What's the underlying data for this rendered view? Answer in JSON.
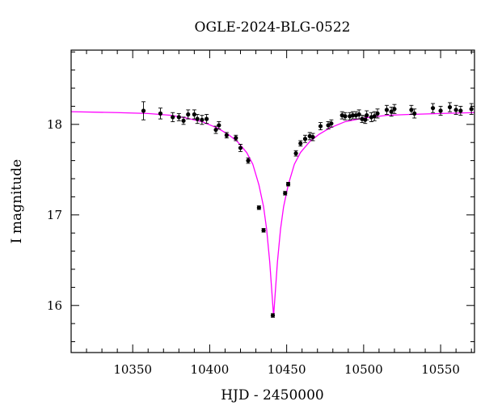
{
  "chart_data": {
    "type": "scatter",
    "title": "OGLE-2024-BLG-0522",
    "xlabel": "HJD - 2450000",
    "ylabel": "I magnitude",
    "xlim": [
      10310,
      10572
    ],
    "ylim": [
      18.82,
      15.48
    ],
    "y_inverted": true,
    "x_tick_labels": [
      "10350",
      "10400",
      "10450",
      "10500",
      "10550"
    ],
    "y_tick_labels": [
      "16",
      "17",
      "18"
    ],
    "x_major_ticks": [
      10350,
      10400,
      10450,
      10500,
      10550
    ],
    "x_minor_step": 10,
    "y_major_ticks": [
      16,
      17,
      18
    ],
    "y_minor_step": 0.2,
    "model_color": "#ff00ff",
    "model": {
      "name": "",
      "t0": 10441.5,
      "baseline_mag": 18.2,
      "points": [
        [
          10310,
          18.14
        ],
        [
          10340,
          18.13
        ],
        [
          10360,
          18.12
        ],
        [
          10375,
          18.1
        ],
        [
          10385,
          18.07
        ],
        [
          10395,
          18.03
        ],
        [
          10405,
          17.96
        ],
        [
          10412,
          17.89
        ],
        [
          10418,
          17.81
        ],
        [
          10424,
          17.69
        ],
        [
          10428,
          17.56
        ],
        [
          10432,
          17.33
        ],
        [
          10435,
          17.09
        ],
        [
          10437,
          16.84
        ],
        [
          10439,
          16.48
        ],
        [
          10440.5,
          16.12
        ],
        [
          10441.5,
          15.88
        ],
        [
          10442.5,
          16.12
        ],
        [
          10444,
          16.48
        ],
        [
          10446,
          16.84
        ],
        [
          10448,
          17.09
        ],
        [
          10451,
          17.33
        ],
        [
          10455,
          17.56
        ],
        [
          10459,
          17.69
        ],
        [
          10465,
          17.81
        ],
        [
          10471,
          17.89
        ],
        [
          10478,
          17.96
        ],
        [
          10488,
          18.03
        ],
        [
          10500,
          18.07
        ],
        [
          10515,
          18.1
        ],
        [
          10530,
          18.11
        ],
        [
          10550,
          18.12
        ],
        [
          10572,
          18.13
        ]
      ]
    },
    "series": [
      {
        "name": "",
        "points": [
          [
            10357,
            18.15,
            0.1
          ],
          [
            10368,
            18.12,
            0.06
          ],
          [
            10376,
            18.08,
            0.05
          ],
          [
            10380,
            18.08,
            0.04
          ],
          [
            10383,
            18.04,
            0.04
          ],
          [
            10386,
            18.11,
            0.05
          ],
          [
            10390,
            18.11,
            0.05
          ],
          [
            10392,
            18.06,
            0.05
          ],
          [
            10395,
            18.05,
            0.05
          ],
          [
            10398,
            18.06,
            0.05
          ],
          [
            10404,
            17.94,
            0.04
          ],
          [
            10406,
            17.99,
            0.04
          ],
          [
            10411,
            17.88,
            0.03
          ],
          [
            10417,
            17.85,
            0.03
          ],
          [
            10420,
            17.74,
            0.04
          ],
          [
            10425,
            17.6,
            0.03
          ],
          [
            10432,
            17.08,
            0.02
          ],
          [
            10435,
            16.83,
            0.02
          ],
          [
            10441,
            15.89,
            0.02
          ],
          [
            10449,
            17.24,
            0.02
          ],
          [
            10451,
            17.34,
            0.02
          ],
          [
            10456,
            17.68,
            0.03
          ],
          [
            10459,
            17.79,
            0.03
          ],
          [
            10462,
            17.84,
            0.04
          ],
          [
            10465,
            17.87,
            0.04
          ],
          [
            10467,
            17.86,
            0.04
          ],
          [
            10472,
            17.98,
            0.04
          ],
          [
            10477,
            17.99,
            0.04
          ],
          [
            10479,
            18.01,
            0.04
          ],
          [
            10486,
            18.1,
            0.04
          ],
          [
            10488,
            18.09,
            0.04
          ],
          [
            10491,
            18.09,
            0.04
          ],
          [
            10493,
            18.1,
            0.04
          ],
          [
            10495,
            18.1,
            0.04
          ],
          [
            10497,
            18.11,
            0.05
          ],
          [
            10499,
            18.06,
            0.04
          ],
          [
            10501,
            18.05,
            0.04
          ],
          [
            10502,
            18.1,
            0.05
          ],
          [
            10505,
            18.08,
            0.05
          ],
          [
            10507,
            18.09,
            0.05
          ],
          [
            10509,
            18.12,
            0.05
          ],
          [
            10515,
            18.16,
            0.05
          ],
          [
            10518,
            18.14,
            0.05
          ],
          [
            10520,
            18.17,
            0.05
          ],
          [
            10531,
            18.16,
            0.05
          ],
          [
            10533,
            18.12,
            0.05
          ],
          [
            10545,
            18.18,
            0.05
          ],
          [
            10550,
            18.15,
            0.05
          ],
          [
            10556,
            18.19,
            0.05
          ],
          [
            10560,
            18.16,
            0.05
          ],
          [
            10563,
            18.15,
            0.05
          ],
          [
            10570,
            18.17,
            0.06
          ]
        ]
      }
    ]
  }
}
